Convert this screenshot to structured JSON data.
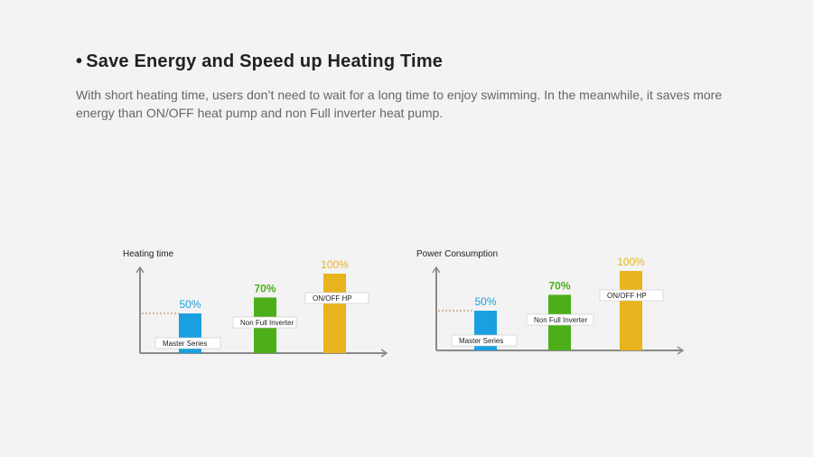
{
  "section": {
    "bullet": "•",
    "title": "Save Energy and Speed up Heating Time",
    "body": "With short heating time, users don’t need to wait for a long time to enjoy swimming. In the  meanwhile, it saves more energy than ON/OFF heat pump and non Full inverter heat pump."
  },
  "colors": {
    "master": "#1aa0e0",
    "nonfull": "#4caf1a",
    "onoff": "#e8b41e",
    "axis": "#8a8a8a"
  },
  "chart_data": [
    {
      "type": "bar",
      "ylabel": "Heating time",
      "categories": [
        "Master Series",
        "Non Full Inverter",
        "ON/OFF HP"
      ],
      "values": [
        50,
        70,
        100
      ],
      "value_labels": [
        "50%",
        "70%",
        "100%"
      ],
      "grid": false
    },
    {
      "type": "bar",
      "ylabel": "Power Consumption",
      "categories": [
        "Master Series",
        "Non Full Inverter",
        "ON/OFF HP"
      ],
      "values": [
        50,
        70,
        100
      ],
      "value_labels": [
        "50%",
        "70%",
        "100%"
      ],
      "grid": false
    }
  ]
}
